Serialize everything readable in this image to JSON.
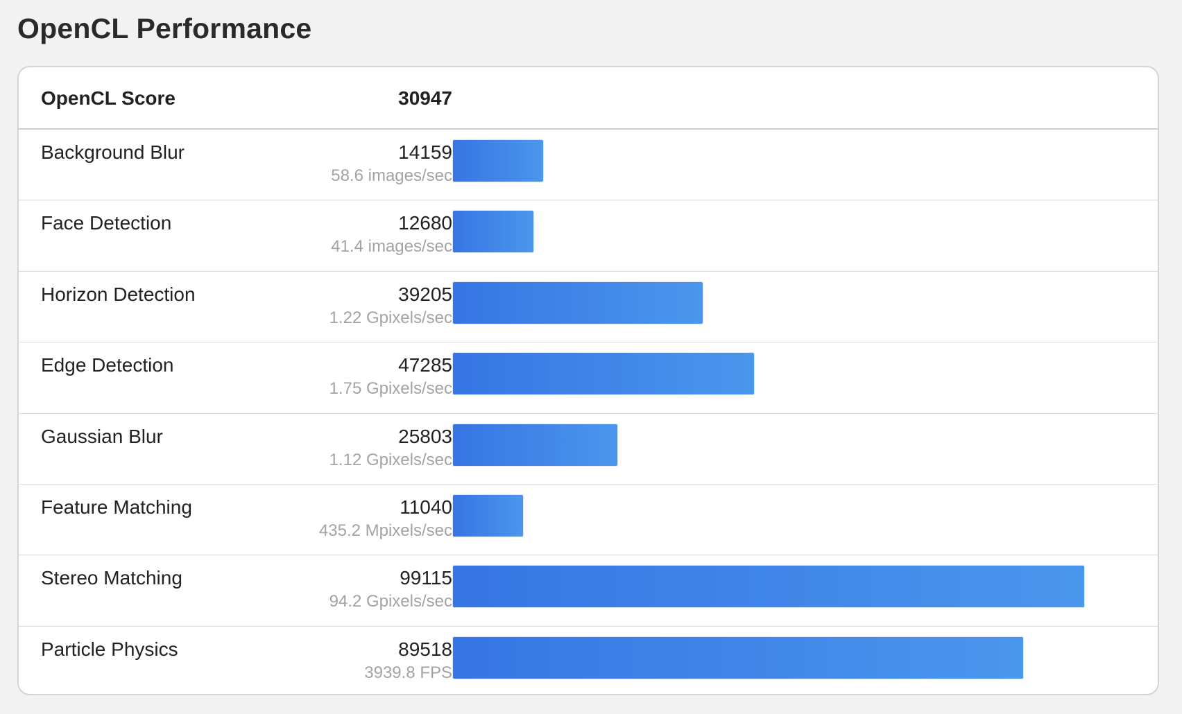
{
  "title": "OpenCL Performance",
  "score": {
    "label": "OpenCL Score",
    "value": "30947"
  },
  "colors": {
    "bar_start": "#3675e3",
    "bar_end": "#4b96ed",
    "background": "#f2f2f2"
  },
  "chart_data": {
    "type": "bar",
    "orientation": "horizontal",
    "title": "OpenCL Performance",
    "categories": [
      "Background Blur",
      "Face Detection",
      "Horizon Detection",
      "Edge Detection",
      "Gaussian Blur",
      "Feature Matching",
      "Stereo Matching",
      "Particle Physics"
    ],
    "values": [
      14159,
      12680,
      39205,
      47285,
      25803,
      11040,
      99115,
      89518
    ],
    "rates": [
      "58.6 images/sec",
      "41.4 images/sec",
      "1.22 Gpixels/sec",
      "1.75 Gpixels/sec",
      "1.12 Gpixels/sec",
      "435.2 Mpixels/sec",
      "94.2 Gpixels/sec",
      "3939.8 FPS"
    ],
    "xlim": [
      0,
      99115
    ],
    "grid": false,
    "legend": "none"
  }
}
